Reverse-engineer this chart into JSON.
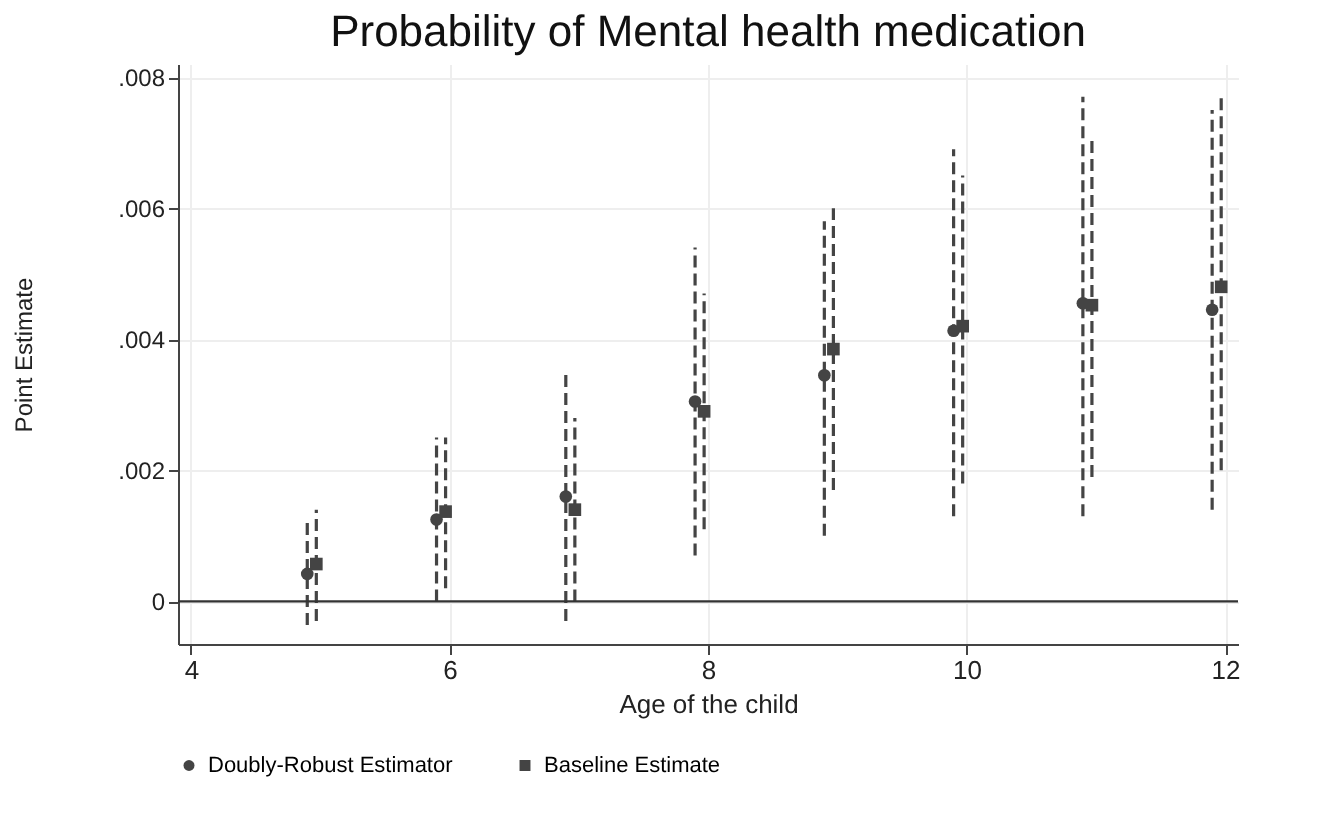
{
  "chart_data": {
    "type": "scatter",
    "title": "Probability of Mental health medication",
    "xlabel": "Age of the child",
    "ylabel": "Point Estimate",
    "series": [
      {
        "name": "Doubly-Robust Estimator",
        "color": "#444444",
        "marker": "circle",
        "x": [
          4.9,
          5.9,
          6.9,
          7.9,
          8.9,
          9.9,
          10.9,
          11.9
        ],
        "values": [
          0.00042,
          0.00125,
          0.0016,
          0.00305,
          0.00345,
          0.00413,
          0.00455,
          0.00445
        ],
        "errors": [
          [
            -0.00036,
            0.00124
          ],
          [
            0.0,
            0.0025
          ],
          [
            -0.0003,
            0.0035
          ],
          [
            0.0007,
            0.0054
          ],
          [
            0.001,
            0.0058
          ],
          [
            0.0013,
            0.0069
          ],
          [
            0.0013,
            0.0077
          ],
          [
            0.0014,
            0.0075
          ]
        ]
      },
      {
        "name": "Baseline Estimate",
        "color": "#444444",
        "marker": "square",
        "x": [
          4.97,
          5.97,
          6.97,
          7.97,
          8.97,
          9.97,
          10.97,
          11.97
        ],
        "values": [
          0.00057,
          0.00137,
          0.0014,
          0.0029,
          0.00385,
          0.0042,
          0.00452,
          0.0048
        ],
        "errors": [
          [
            -0.0003,
            0.0014
          ],
          [
            0.0002,
            0.0025
          ],
          [
            0.0,
            0.0028
          ],
          [
            0.0011,
            0.0047
          ],
          [
            0.0017,
            0.006
          ],
          [
            0.0018,
            0.0065
          ],
          [
            0.0019,
            0.0071
          ],
          [
            0.002,
            0.0077
          ]
        ]
      }
    ],
    "xlim": [
      3.9,
      12.1
    ],
    "xticks": [
      4,
      6,
      8,
      10,
      12
    ],
    "ylim": [
      -0.00065,
      0.0082
    ],
    "yticks": [
      0,
      {
        "value": 0.002,
        "label": ".002"
      },
      {
        "value": 0.004,
        "label": ".004"
      },
      {
        "value": 0.006,
        "label": ".006"
      },
      {
        "value": 0.008,
        "label": ".008"
      }
    ],
    "ref_lines": [
      {
        "axis": "y",
        "value": 0,
        "color": "#333333"
      }
    ],
    "grid": true,
    "legend": "bottom",
    "line_style": "dashed"
  }
}
